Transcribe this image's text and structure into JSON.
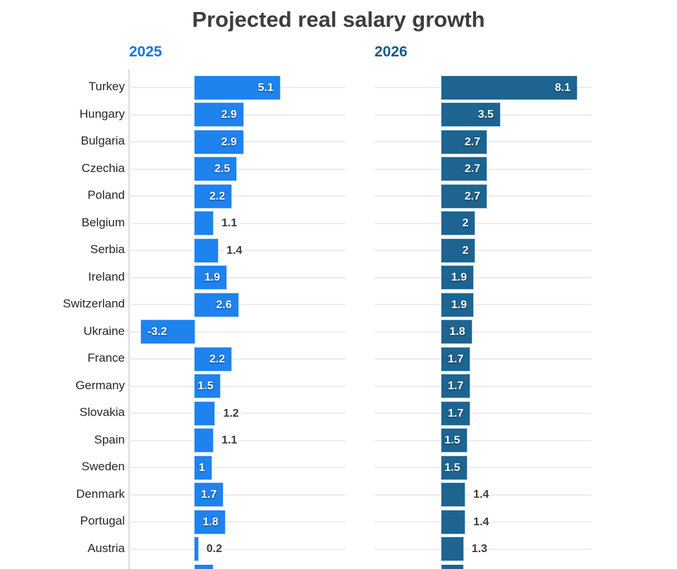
{
  "title": "Projected real salary growth",
  "panels": [
    {
      "year_label": "2025",
      "header_color": "#1277e3",
      "bar_color": "#1e82ef"
    },
    {
      "year_label": "2026",
      "header_color": "#155a84",
      "bar_color": "#1d6491"
    }
  ],
  "chart_data": {
    "type": "bar",
    "orientation": "horizontal",
    "grid": true,
    "xlim": [
      -4,
      9.1
    ],
    "categories": [
      "Turkey",
      "Hungary",
      "Bulgaria",
      "Czechia",
      "Poland",
      "Belgium",
      "Serbia",
      "Ireland",
      "Switzerland",
      "Ukraine",
      "France",
      "Germany",
      "Slovakia",
      "Spain",
      "Sweden",
      "Denmark",
      "Portugal",
      "Austria"
    ],
    "series": [
      {
        "name": "2025",
        "values": [
          5.1,
          2.9,
          2.9,
          2.5,
          2.2,
          1.1,
          1.4,
          1.9,
          2.6,
          -3.2,
          2.2,
          1.5,
          1.2,
          1.1,
          1.0,
          1.7,
          1.8,
          0.2
        ],
        "value_labels": [
          "5.1",
          "2.9",
          "2.9",
          "2.5",
          "2.2",
          "1.1",
          "1.4",
          "1.9",
          "2.6",
          "-3.2",
          "2.2",
          "1.5",
          "1.2",
          "1.1",
          "1",
          "1.7",
          "1.8",
          "0.2"
        ],
        "label_inside": [
          true,
          true,
          true,
          true,
          true,
          false,
          false,
          true,
          true,
          true,
          true,
          true,
          false,
          false,
          true,
          true,
          true,
          false
        ]
      },
      {
        "name": "2026",
        "values": [
          8.1,
          3.5,
          2.7,
          2.7,
          2.7,
          2.0,
          2.0,
          1.9,
          1.9,
          1.8,
          1.7,
          1.7,
          1.7,
          1.5,
          1.5,
          1.4,
          1.4,
          1.3
        ],
        "value_labels": [
          "8.1",
          "3.5",
          "2.7",
          "2.7",
          "2.7",
          "2",
          "2",
          "1.9",
          "1.9",
          "1.8",
          "1.7",
          "1.7",
          "1.7",
          "1.5",
          "1.5",
          "1.4",
          "1.4",
          "1.3"
        ],
        "label_inside": [
          true,
          true,
          true,
          true,
          true,
          true,
          true,
          true,
          true,
          true,
          true,
          true,
          true,
          true,
          true,
          false,
          false,
          false
        ]
      }
    ],
    "partial_bottom_row": {
      "visible": true,
      "values_estimated": [
        1.1,
        1.3
      ]
    }
  }
}
